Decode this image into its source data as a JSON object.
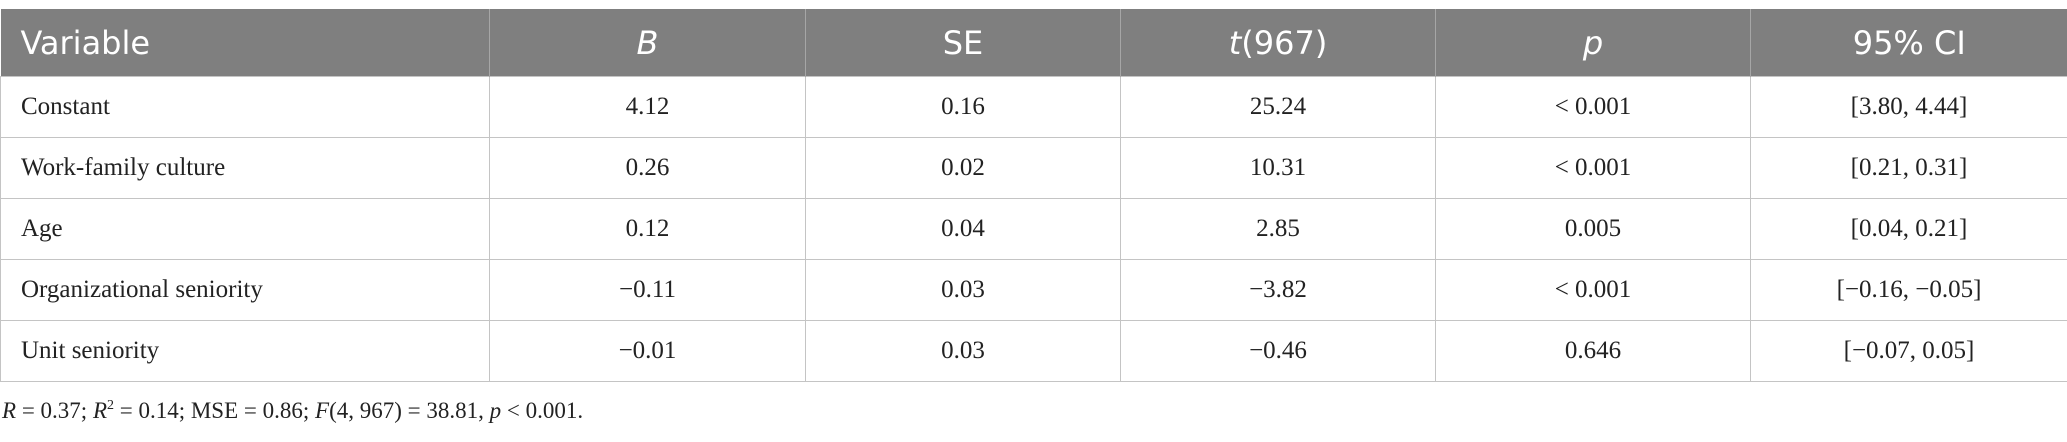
{
  "table": {
    "header": [
      "Variable",
      "B",
      "SE",
      [
        "t",
        "(967)"
      ],
      "p",
      "95% CI"
    ],
    "rows": [
      [
        "Constant",
        "4.12",
        "0.16",
        "25.24",
        "< 0.001",
        "[3.80, 4.44]"
      ],
      [
        "Work-family culture",
        "0.26",
        "0.02",
        "10.31",
        "< 0.001",
        "[0.21, 0.31]"
      ],
      [
        "Age",
        "0.12",
        "0.04",
        "2.85",
        "0.005",
        "[0.04, 0.21]"
      ],
      [
        "Organizational seniority",
        "−0.11",
        "0.03",
        "−3.82",
        "< 0.001",
        "[−0.16, −0.05]"
      ],
      [
        "Unit seniority",
        "−0.01",
        "0.03",
        "−0.46",
        "0.646",
        "[−0.07, 0.05]"
      ]
    ]
  },
  "footnote": [
    "R",
    " = 0.37; ",
    "R",
    "2",
    " = 0.14; MSE = 0.86; ",
    "F",
    "(4, 967) = 38.81, ",
    "p",
    " < 0.001."
  ]
}
